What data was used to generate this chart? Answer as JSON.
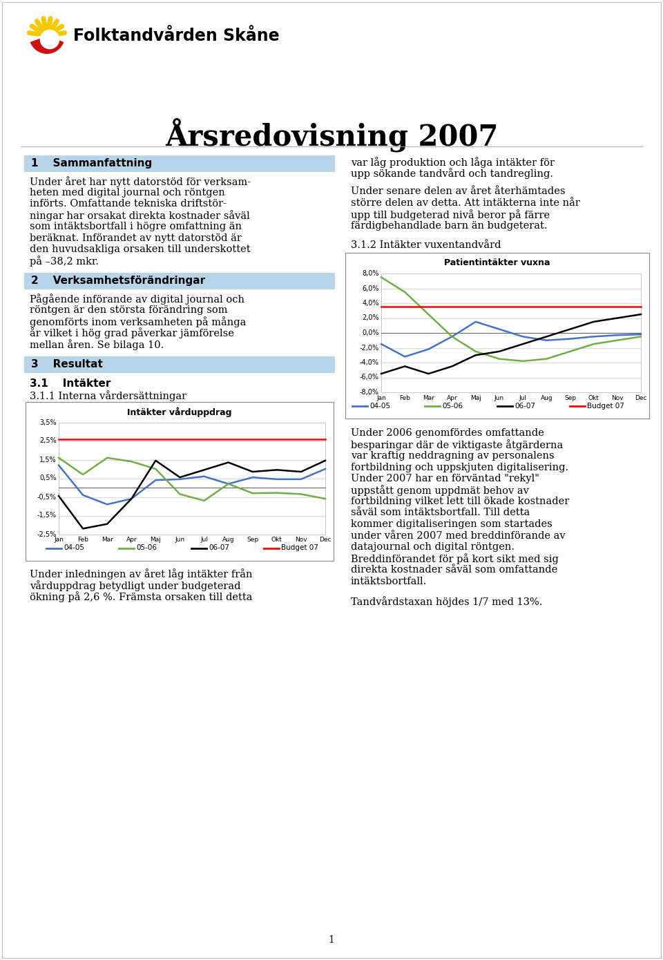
{
  "title": "Årsredovisning 2007",
  "logo_text": "Folktandvården Skåne",
  "section1_title": "1    Sammanfattning",
  "section1_text": [
    "Under året har nytt datorstöd för verksam-",
    "heten med digital journal och röntgen",
    "införts. Omfattande tekniska driftstör-",
    "ningar har orsakat direkta kostnader såväl",
    "som intäktsbortfall i högre omfattning än",
    "beräknat. Införandet av nytt datorstöd är",
    "den huvudsakliga orsaken till underskottet",
    "på –38,2 mkr."
  ],
  "section2_title": "2    Verksamhetsförändringar",
  "section2_text": [
    "Pågående införande av digital journal och",
    "röntgen är den största förändring som",
    "genomförts inom verksamheten på många",
    "år vilket i hög grad påverkar jämförelse",
    "mellan åren. Se bilaga 10."
  ],
  "section3_title": "3    Resultat",
  "section31_title": "3.1    Intäkter",
  "section311_title": "3.1.1 Interna vårdersättningar",
  "chart1_title": "Intäkter vårduppdrag",
  "chart1_months": [
    "Jan",
    "Feb",
    "Mar",
    "Apr",
    "Maj",
    "Jun",
    "Jul",
    "Aug",
    "Sep",
    "Okt",
    "Nov",
    "Dec"
  ],
  "chart1_04_05": [
    1.2,
    -0.4,
    -0.9,
    -0.6,
    0.4,
    0.45,
    0.6,
    0.2,
    0.55,
    0.45,
    0.45,
    1.0
  ],
  "chart1_05_06": [
    1.6,
    0.7,
    1.6,
    1.4,
    1.0,
    -0.35,
    -0.7,
    0.2,
    -0.3,
    -0.28,
    -0.35,
    -0.6
  ],
  "chart1_06_07": [
    -0.45,
    -2.2,
    -1.95,
    -0.6,
    1.45,
    0.55,
    0.95,
    1.35,
    0.85,
    0.95,
    0.85,
    1.45
  ],
  "chart1_budget": [
    2.6,
    2.6,
    2.6,
    2.6,
    2.6,
    2.6,
    2.6,
    2.6,
    2.6,
    2.6,
    2.6,
    2.6
  ],
  "chart1_ylim": [
    -2.5,
    3.5
  ],
  "chart1_yticks": [
    -2.5,
    -1.5,
    -0.5,
    0.5,
    1.5,
    2.5,
    3.5
  ],
  "chart1_ytick_labels": [
    "-2,5%",
    "-1,5%",
    "-0,5%",
    "0,5%",
    "1,5%",
    "2,5%",
    "3,5%"
  ],
  "chart1_text_below": [
    "Under inledningen av året låg intäkter från",
    "vårduppdrag betydligt under budgeterad",
    "ökning på 2,6 %. Främsta orsaken till detta"
  ],
  "section312_title": "3.1.2 Intäkter vuxentandvård",
  "chart2_title": "Patientintäkter vuxna",
  "chart2_months": [
    "Jan",
    "Feb",
    "Mar",
    "Apr",
    "Maj",
    "Jun",
    "Jul",
    "Aug",
    "Sep",
    "Okt",
    "Nov",
    "Dec"
  ],
  "chart2_04_05": [
    -1.5,
    -3.2,
    -2.2,
    -0.5,
    1.5,
    0.5,
    -0.5,
    -1.0,
    -0.8,
    -0.5,
    -0.3,
    -0.2
  ],
  "chart2_05_06": [
    7.5,
    5.5,
    2.5,
    -0.5,
    -2.5,
    -3.5,
    -3.8,
    -3.5,
    -2.5,
    -1.5,
    -1.0,
    -0.5
  ],
  "chart2_06_07": [
    -5.5,
    -4.5,
    -5.5,
    -4.5,
    -3.0,
    -2.5,
    -1.5,
    -0.5,
    0.5,
    1.5,
    2.0,
    2.5
  ],
  "chart2_budget": [
    3.5,
    3.5,
    3.5,
    3.5,
    3.5,
    3.5,
    3.5,
    3.5,
    3.5,
    3.5,
    3.5,
    3.5
  ],
  "chart2_ylim": [
    -8.0,
    8.0
  ],
  "chart2_yticks": [
    -8.0,
    -6.0,
    -4.0,
    -2.0,
    0.0,
    2.0,
    4.0,
    6.0,
    8.0
  ],
  "chart2_ytick_labels": [
    "-8,0%",
    "-6,0%",
    "-4,0%",
    "-2,0%",
    "0,0%",
    "2,0%",
    "4,0%",
    "6,0%",
    "8,0%"
  ],
  "color_04_05": "#4472c4",
  "color_05_06": "#70ad47",
  "color_06_07": "#000000",
  "color_budget": "#ff0000",
  "right_text1": [
    "var låg produktion och låga intäkter för",
    "upp sökande tandvård och tandregling."
  ],
  "right_text2": [
    "Under senare delen av året återhämtades",
    "större delen av detta. Att intäkterna inte når",
    "upp till budgeterad nivå beror på färre",
    "färdigbehandlade barn än budgeterat."
  ],
  "right_text3": [
    "Under 2006 genomfördes omfattande",
    "besparingar där de viktigaste åtgärderna",
    "var kraftig neddragning av personalens",
    "fortbildning och uppskjuten digitalisering.",
    "Under 2007 har en förväntad \"rekyl\"",
    "uppstått genom uppdmät behov av",
    "fortbildning vilket lett till ökade kostnader",
    "såväl som intäktsbortfall. Till detta",
    "kommer digitaliseringen som startades",
    "under våren 2007 med breddinförande av",
    "datajournal och digital röntgen.",
    "Breddinförandet för på kort sikt med sig",
    "direkta kostnader såväl som omfattande",
    "intäktsbortfall."
  ],
  "right_text4": "Tandvårdstaxan höjdes 1/7 med 13%.",
  "header_bg": "#b8d4e8",
  "bg_color": "#ffffff",
  "page_number": "1"
}
